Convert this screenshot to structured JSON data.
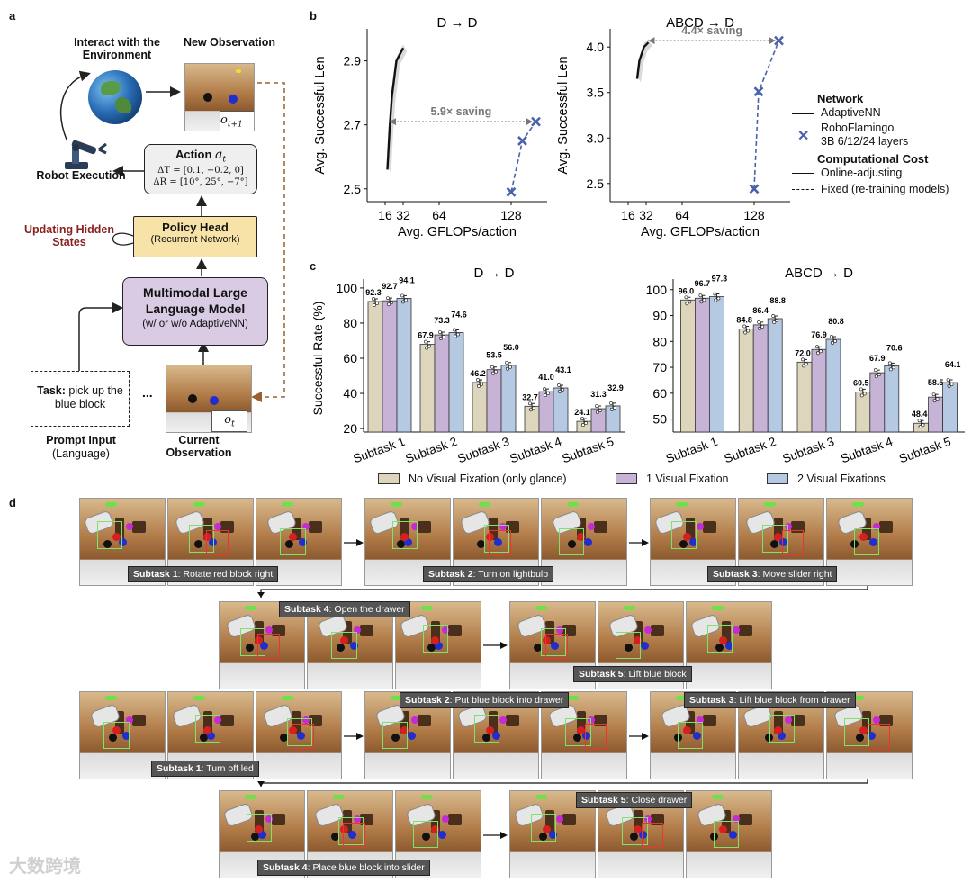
{
  "panels": {
    "a": "a",
    "b": "b",
    "c": "c",
    "d": "d"
  },
  "panel_a": {
    "interact": "Interact with the Environment",
    "new_obs": "New Observation",
    "o_next": "o",
    "o_next_sub": "t+1",
    "action_title": "Action",
    "action_var": "a",
    "action_var_sub": "t",
    "delta_t": "ΔT = [0.1, −0.2, 0]",
    "delta_r": "ΔR = [10°, 25°, −7°]",
    "robot_exec": "Robot Execution",
    "updating": "Updating Hidden States",
    "policy_head": "Policy Head",
    "policy_sub": "(Recurrent Network)",
    "mllm_title": "Multimodal Large Language Model",
    "mllm_sub": "(w/ or w/o AdaptiveNN)",
    "task_label": "Task:",
    "task_text": "pick up the blue block",
    "ellipsis": "...",
    "o_t": "o",
    "o_t_sub": "t",
    "prompt_input": "Prompt Input",
    "prompt_lang": "(Language)",
    "current_obs": "Current Observation"
  },
  "legend_b": {
    "network": "Network",
    "adaptive": "AdaptiveNN",
    "robo": "RoboFlamingo",
    "robo_sub": "3B 6/12/24 layers",
    "cost": "Computational Cost",
    "online": "Online-adjusting",
    "fixed": "Fixed (re-training models)"
  },
  "legend_c": {
    "s1": "No Visual Fixation (only glance)",
    "s2": "1 Visual Fixation",
    "s3": "2 Visual Fixations"
  },
  "colors": {
    "c_none": "#ddd6bd",
    "c_one": "#c6b3d6",
    "c_two": "#b5c9e3",
    "robo": "#4a62ad",
    "arrow": "#777777",
    "brown": "#9a6030",
    "red_txt": "#8a2222",
    "policy_fill": "#f7e3a7",
    "mllm_fill": "#d9cbe4",
    "action_fill": "#efefef"
  },
  "chart_data": [
    {
      "type": "line",
      "title": "D → D",
      "xlabel": "Avg. GFLOPs/action",
      "ylabel": "Avg. Successful Len",
      "xticks": [
        16,
        32,
        64,
        128
      ],
      "yticks": [
        2.5,
        2.7,
        2.9
      ],
      "annotation": "5.9× saving",
      "series": [
        {
          "name": "AdaptiveNN",
          "x": [
            18,
            20,
            22,
            26,
            32
          ],
          "y": [
            2.56,
            2.69,
            2.79,
            2.9,
            2.94
          ]
        },
        {
          "name": "RoboFlamingo",
          "x": [
            128,
            138,
            150
          ],
          "y": [
            2.49,
            2.65,
            2.71
          ]
        }
      ]
    },
    {
      "type": "line",
      "title": "ABCD → D",
      "xlabel": "Avg. GFLOPs/action",
      "ylabel": "Avg. Successful Len",
      "xticks": [
        16,
        32,
        64,
        128
      ],
      "yticks": [
        2.5,
        3.0,
        3.5,
        4.0
      ],
      "annotation": "4.4× saving",
      "series": [
        {
          "name": "AdaptiveNN",
          "x": [
            24,
            26,
            30,
            34
          ],
          "y": [
            3.65,
            3.85,
            4.0,
            4.05
          ]
        },
        {
          "name": "RoboFlamingo",
          "x": [
            128,
            132,
            150
          ],
          "y": [
            2.44,
            3.51,
            4.07
          ]
        }
      ]
    },
    {
      "type": "bar",
      "title": "D → D",
      "ylabel": "Successful Rate (%)",
      "categories": [
        "Subtask 1",
        "Subtask 2",
        "Subtask 3",
        "Subtask 4",
        "Subtask 5"
      ],
      "yticks": [
        20,
        40,
        60,
        80,
        100
      ],
      "series": [
        {
          "name": "No Visual Fixation (only glance)",
          "values": [
            92.3,
            67.9,
            46.2,
            32.7,
            24.1
          ],
          "labels": [
            "92.3",
            "67.9",
            "46.2",
            "32.7",
            "24.1"
          ]
        },
        {
          "name": "1 Visual Fixation",
          "values": [
            92.7,
            73.3,
            53.5,
            41.0,
            31.3
          ],
          "labels": [
            "92.7",
            "73.3",
            "53.5",
            "41.0",
            "31.3"
          ]
        },
        {
          "name": "2 Visual Fixations",
          "values": [
            94.1,
            74.6,
            56.0,
            43.1,
            32.9
          ],
          "labels": [
            "94.1",
            "74.6",
            "56.0",
            "43.1",
            "32.9"
          ]
        }
      ]
    },
    {
      "type": "bar",
      "title": "ABCD → D",
      "ylabel": "",
      "categories": [
        "Subtask 1",
        "Subtask 2",
        "Subtask 3",
        "Subtask 4",
        "Subtask 5"
      ],
      "yticks": [
        50,
        60,
        70,
        80,
        90,
        100
      ],
      "series": [
        {
          "name": "No Visual Fixation (only glance)",
          "values": [
            96.0,
            84.8,
            72.0,
            60.5,
            48.4
          ],
          "labels": [
            "96.0",
            "84.8",
            "72.0",
            "60.5",
            "48.4"
          ]
        },
        {
          "name": "1 Visual Fixation",
          "values": [
            96.7,
            86.4,
            76.9,
            67.9,
            58.5
          ],
          "labels": [
            "96.7",
            "86.4",
            "76.9",
            "67.9",
            "58.5"
          ]
        },
        {
          "name": "2 Visual Fixations",
          "values": [
            97.3,
            88.8,
            80.8,
            70.6,
            64.1
          ],
          "labels": [
            "97.3",
            "88.8",
            "80.8",
            "70.6",
            "64.1"
          ]
        }
      ]
    }
  ],
  "panel_d": {
    "captions": [
      {
        "bold": "Subtask 1",
        "rest": ": Rotate red block right"
      },
      {
        "bold": "Subtask 2",
        "rest": ": Turn on lightbulb"
      },
      {
        "bold": "Subtask 3",
        "rest": ": Move slider right"
      },
      {
        "bold": "Subtask 4",
        "rest": ": Open the drawer"
      },
      {
        "bold": "Subtask 5",
        "rest": ": Lift blue block"
      },
      {
        "bold": "Subtask 1",
        "rest": ": Turn off led"
      },
      {
        "bold": "Subtask 2",
        "rest": ": Put blue block into drawer"
      },
      {
        "bold": "Subtask 3",
        "rest": ": Lift blue block from drawer"
      },
      {
        "bold": "Subtask 4",
        "rest": ": Place blue block into slider"
      },
      {
        "bold": "Subtask 5",
        "rest": ": Close drawer"
      }
    ]
  },
  "watermark": "大数跨境"
}
